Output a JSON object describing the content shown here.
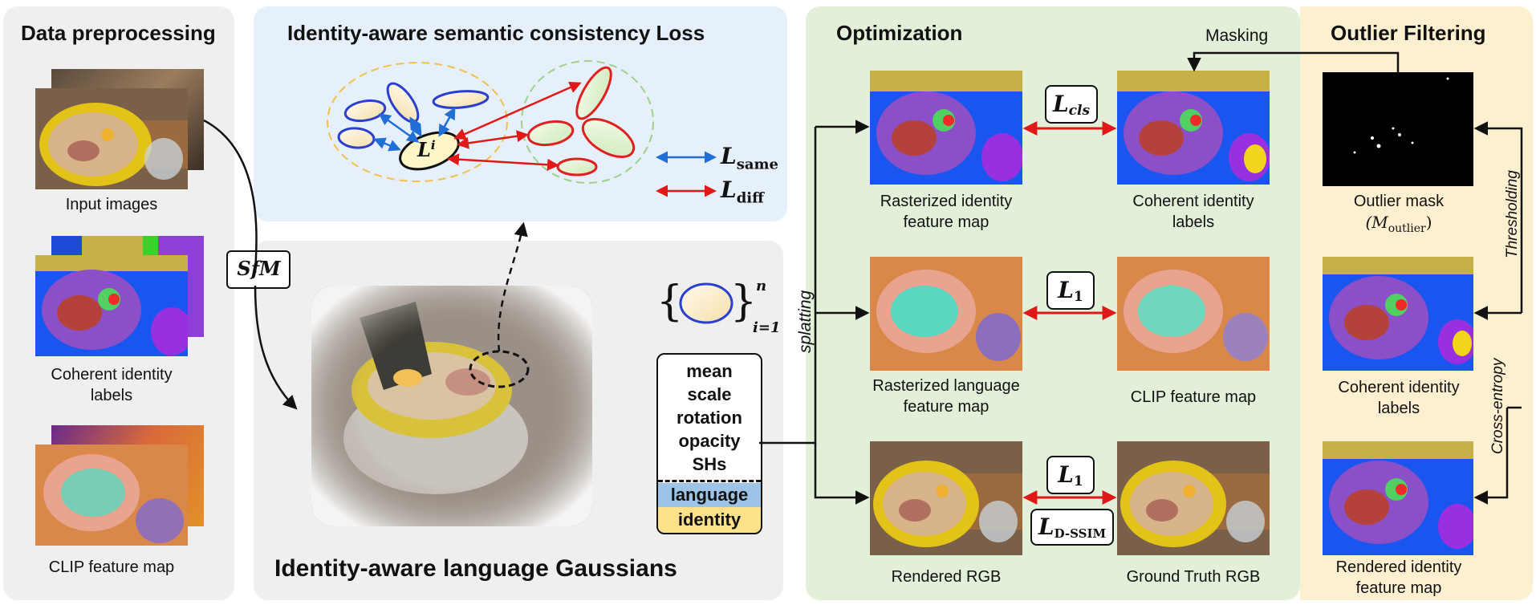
{
  "panels": {
    "preprocessing": {
      "title": "Data preprocessing",
      "captions": {
        "input_images": "Input images",
        "coherent_labels_l1": "Coherent identity",
        "coherent_labels_l2": "labels",
        "clip_map": "CLIP feature map"
      },
      "sfm_label": "SfM"
    },
    "consistency_loss": {
      "title": "Identity-aware semantic consistency Loss",
      "center_label": "L",
      "center_sup": "i",
      "legend": {
        "same_base": "L",
        "same_sub": "same",
        "diff_base": "L",
        "diff_sub": "diff"
      }
    },
    "gaussians": {
      "title": "Identity-aware language Gaussians",
      "set_sup": "n",
      "set_sub": "i=1",
      "attributes": [
        "mean",
        "scale",
        "rotation",
        "opacity",
        "SHs"
      ],
      "language": "language",
      "identity": "identity"
    },
    "optimization": {
      "title": "Optimization",
      "splatting": "splatting",
      "masking": "Masking",
      "rows": [
        {
          "left_l1": "Rasterized identity",
          "left_l2": "feature map",
          "right_l1": "Coherent identity",
          "right_l2": "labels",
          "loss_base": "L",
          "loss_sub": "cls"
        },
        {
          "left_l1": "Rasterized language",
          "left_l2": "feature map",
          "right_l1": "CLIP feature map",
          "right_l2": "",
          "loss_base": "L",
          "loss_sub": "1"
        },
        {
          "left_l1": "Rendered RGB",
          "left_l2": "",
          "right_l1": "Ground Truth RGB",
          "right_l2": "",
          "loss_base": "L",
          "loss_sub": "1",
          "extra_base": "L",
          "extra_sub": "D-SSIM"
        }
      ]
    },
    "outlier": {
      "title": "Outlier Filtering",
      "mask_l1": "Outlier mask",
      "mask_l2_base": "(M",
      "mask_l2_sub": "outlier",
      "mask_l2_end": ")",
      "labels_l1": "Coherent identity",
      "labels_l2": "labels",
      "rendered_l1": "Rendered identity",
      "rendered_l2": "feature map",
      "thresholding": "Thresholding",
      "cross_entropy": "Cross-entropy"
    }
  },
  "colors": {
    "panel_gray": "#efefef",
    "panel_blue": "#e6f0fa",
    "panel_green": "#e2efd9",
    "panel_yellow": "#fdf0d0",
    "arrow_red": "#e01818",
    "arrow_blue": "#1f6fd6",
    "ellipse_blue": "#2a3fd0",
    "ellipse_red": "#e02020",
    "language_band": "#9dc3e6",
    "identity_band": "#fde28a"
  }
}
